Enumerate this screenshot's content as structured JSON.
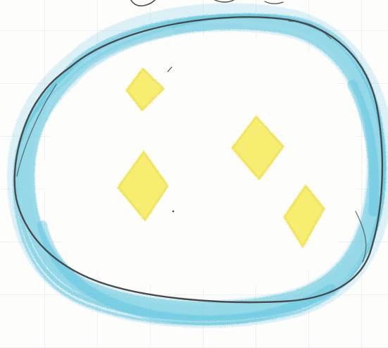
{
  "drawing": {
    "colors": {
      "paper": "#fdfdfc",
      "grid": "#dfe3e6",
      "blue_crayon": "#5cc4dd",
      "blue_crayon_light": "#9fdbea",
      "outline_pencil": "#4a4a4a",
      "yellow_crayon": "#f7ec63",
      "yellow_crayon_edge": "#efe14a"
    },
    "elements": {
      "outline": "pencil-outline",
      "blue_ring": "blue-crayon-ring",
      "diamonds": [
        "yellow-diamond",
        "yellow-diamond",
        "yellow-diamond",
        "yellow-diamond"
      ],
      "top_mark": "pencil-scribble"
    }
  }
}
